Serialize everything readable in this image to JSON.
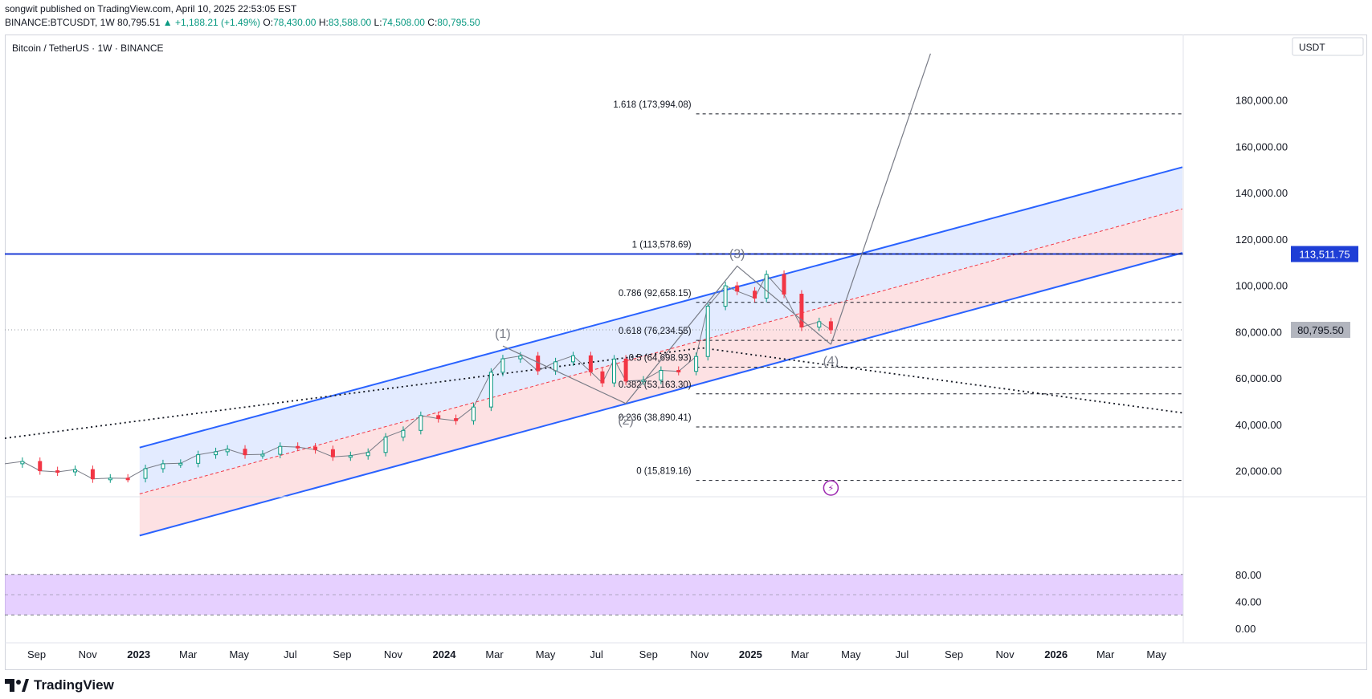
{
  "header": {
    "published_by": "songwit published on TradingView.com, April 10, 2025 22:53:05 EST",
    "symbol": "BINANCE:BTCUSDT, 1W",
    "last": "80,795.51",
    "change": "▲ +1,188.21 (+1.49%)",
    "o_label": "O:",
    "o": "78,430.00",
    "h_label": "H:",
    "h": "83,588.00",
    "l_label": "L:",
    "l": "74,508.00",
    "c_label": "C:",
    "c": "80,795.50"
  },
  "chart_title": "Bitcoin / TetherUS · 1W · BINANCE",
  "currency": "USDT",
  "price_badges": {
    "level": "113,511.75",
    "last": "80,795.50"
  },
  "footer": {
    "brand": "TradingView"
  },
  "colors": {
    "blue": "#2962ff",
    "red": "#f23645",
    "green": "#089981",
    "stoch_k": "#2196f3",
    "stoch_d": "#ff6d00",
    "band": "#e1bee7"
  },
  "chart_data": {
    "type": "candlestick",
    "y_axis": {
      "scale": "linear",
      "range": [
        10000,
        200000
      ],
      "ticks": [
        20000,
        40000,
        60000,
        80000,
        100000,
        120000,
        140000,
        160000,
        180000
      ],
      "tick_labels": [
        "20,000.00",
        "40,000.00",
        "60,000.00",
        "80,000.00",
        "100,000.00",
        "120,000.00",
        "140,000.00",
        "160,000.00",
        "180,000.00"
      ]
    },
    "x_axis": {
      "range": [
        "2022-07-25",
        "2026-06-01"
      ],
      "ticks": [
        {
          "label": "Sep",
          "date": "2022-09-01",
          "bold": false
        },
        {
          "label": "Nov",
          "date": "2022-11-01",
          "bold": false
        },
        {
          "label": "2023",
          "date": "2023-01-01",
          "bold": true
        },
        {
          "label": "Mar",
          "date": "2023-03-01",
          "bold": false
        },
        {
          "label": "May",
          "date": "2023-05-01",
          "bold": false
        },
        {
          "label": "Jul",
          "date": "2023-07-01",
          "bold": false
        },
        {
          "label": "Sep",
          "date": "2023-09-01",
          "bold": false
        },
        {
          "label": "Nov",
          "date": "2023-11-01",
          "bold": false
        },
        {
          "label": "2024",
          "date": "2024-01-01",
          "bold": true
        },
        {
          "label": "Mar",
          "date": "2024-03-01",
          "bold": false
        },
        {
          "label": "May",
          "date": "2024-05-01",
          "bold": false
        },
        {
          "label": "Jul",
          "date": "2024-07-01",
          "bold": false
        },
        {
          "label": "Sep",
          "date": "2024-09-01",
          "bold": false
        },
        {
          "label": "Nov",
          "date": "2024-11-01",
          "bold": false
        },
        {
          "label": "2025",
          "date": "2025-01-01",
          "bold": true
        },
        {
          "label": "Mar",
          "date": "2025-03-01",
          "bold": false
        },
        {
          "label": "May",
          "date": "2025-05-01",
          "bold": false
        },
        {
          "label": "Jul",
          "date": "2025-07-01",
          "bold": false
        },
        {
          "label": "Sep",
          "date": "2025-09-01",
          "bold": false
        },
        {
          "label": "Nov",
          "date": "2025-11-01",
          "bold": false
        },
        {
          "label": "2026",
          "date": "2026-01-01",
          "bold": true
        },
        {
          "label": "Mar",
          "date": "2026-03-01",
          "bold": false
        },
        {
          "label": "May",
          "date": "2026-05-01",
          "bold": false
        }
      ]
    },
    "horizontal_line": {
      "price": 113511.75
    },
    "last_price_line": {
      "price": 80795.5
    },
    "fib_levels": [
      {
        "label": "1.618 (173,994.08)",
        "price": 173994.08
      },
      {
        "label": "1 (113,578.69)",
        "price": 113578.69
      },
      {
        "label": "0.786 (92,658.15)",
        "price": 92658.15
      },
      {
        "label": "0.618 (76,234.55)",
        "price": 76234.55
      },
      {
        "label": "0.5 (64,698.93)",
        "price": 64698.93
      },
      {
        "label": "0.382 (53,163.30)",
        "price": 53163.3
      },
      {
        "label": "0.236 (38,890.41)",
        "price": 38890.41
      },
      {
        "label": "0 (15,819.16)",
        "price": 15819.16
      }
    ],
    "fib_start_date": "2024-10-28",
    "wave_labels": [
      {
        "label": "(1)",
        "date": "2024-03-11",
        "price": 73800
      },
      {
        "label": "(2)",
        "date": "2024-08-05",
        "price": 49000
      },
      {
        "label": "(3)",
        "date": "2024-12-16",
        "price": 108300
      },
      {
        "label": "(4)",
        "date": "2025-04-07",
        "price": 74500
      }
    ],
    "channel": {
      "upper": [
        [
          "2023-01-02",
          30000
        ],
        [
          "2026-06-01",
          151000
        ]
      ],
      "mid": [
        [
          "2023-01-02",
          10000
        ],
        [
          "2026-06-01",
          133000
        ]
      ],
      "lower": [
        [
          "2023-01-02",
          -8000
        ],
        [
          "2026-06-01",
          114000
        ]
      ]
    },
    "trend_line_dotted": [
      [
        "2022-07-25",
        34000
      ],
      [
        "2024-11-04",
        73000
      ],
      [
        "2026-06-01",
        45000
      ]
    ],
    "projection": [
      [
        "2025-04-07",
        74500
      ],
      [
        "2025-08-04",
        200000
      ]
    ],
    "series": [
      {
        "name": "price",
        "points": [
          [
            "2022-07-25",
            23000
          ],
          [
            "2022-08-15",
            24000
          ],
          [
            "2022-09-05",
            20000
          ],
          [
            "2022-09-26",
            19500
          ],
          [
            "2022-10-17",
            20500
          ],
          [
            "2022-11-07",
            16500
          ],
          [
            "2022-11-28",
            16800
          ],
          [
            "2022-12-19",
            16700
          ],
          [
            "2023-01-09",
            20900
          ],
          [
            "2023-01-30",
            23000
          ],
          [
            "2023-02-20",
            23200
          ],
          [
            "2023-03-13",
            26900
          ],
          [
            "2023-04-03",
            28200
          ],
          [
            "2023-04-17",
            29300
          ],
          [
            "2023-05-08",
            26900
          ],
          [
            "2023-05-29",
            27100
          ],
          [
            "2023-06-19",
            30500
          ],
          [
            "2023-07-10",
            30200
          ],
          [
            "2023-07-31",
            29100
          ],
          [
            "2023-08-21",
            26000
          ],
          [
            "2023-09-11",
            26500
          ],
          [
            "2023-10-02",
            27900
          ],
          [
            "2023-10-23",
            34500
          ],
          [
            "2023-11-13",
            37400
          ],
          [
            "2023-12-04",
            43800
          ],
          [
            "2023-12-25",
            42500
          ],
          [
            "2024-01-15",
            41600
          ],
          [
            "2024-02-05",
            47500
          ],
          [
            "2024-02-26",
            62500
          ],
          [
            "2024-03-11",
            68300
          ],
          [
            "2024-04-01",
            69500
          ],
          [
            "2024-04-22",
            63100
          ],
          [
            "2024-05-13",
            67000
          ],
          [
            "2024-06-03",
            69600
          ],
          [
            "2024-06-24",
            62700
          ],
          [
            "2024-07-08",
            57900
          ],
          [
            "2024-07-22",
            68200
          ],
          [
            "2024-08-05",
            58700
          ],
          [
            "2024-08-26",
            59100
          ],
          [
            "2024-09-16",
            63300
          ],
          [
            "2024-10-07",
            62900
          ],
          [
            "2024-10-28",
            69300
          ],
          [
            "2024-11-11",
            91000
          ],
          [
            "2024-12-02",
            99800
          ],
          [
            "2024-12-16",
            97500
          ],
          [
            "2025-01-06",
            94500
          ],
          [
            "2025-01-20",
            104700
          ],
          [
            "2025-02-10",
            96200
          ],
          [
            "2025-03-03",
            82000
          ],
          [
            "2025-03-24",
            84300
          ],
          [
            "2025-04-07",
            80795
          ]
        ]
      }
    ],
    "stochastic": {
      "y_range": [
        0,
        100
      ],
      "ticks": [
        0,
        40,
        80
      ],
      "tick_labels": [
        "0.00",
        "40.00",
        "80.00"
      ],
      "band": [
        20,
        80
      ]
    }
  }
}
